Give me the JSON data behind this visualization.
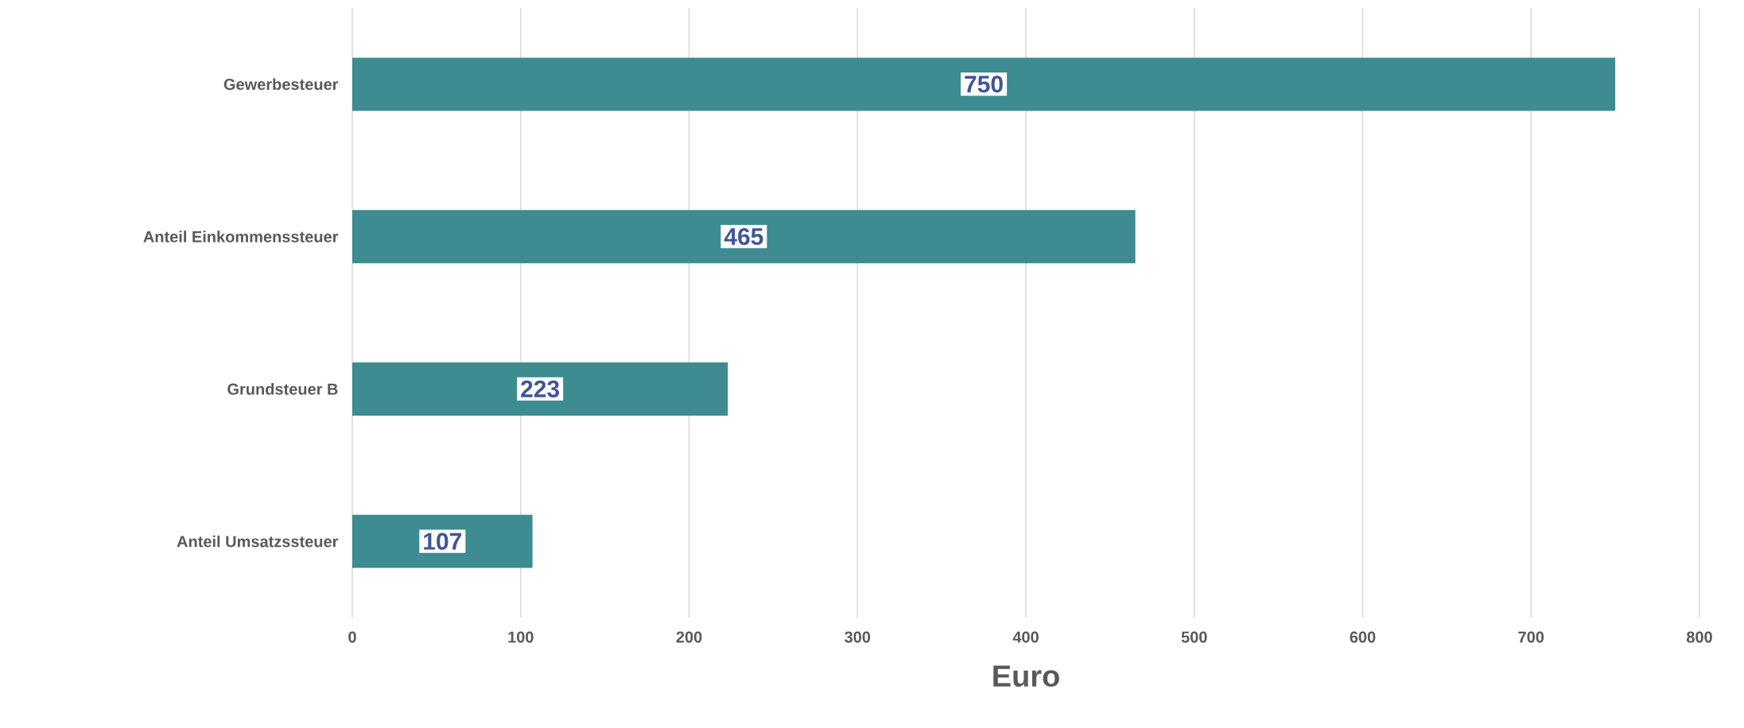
{
  "chart_data": {
    "type": "bar",
    "orientation": "horizontal",
    "xlabel": "Euro",
    "categories": [
      "Gewerbesteuer",
      "Anteil Einkommenssteuer",
      "Grundsteuer B",
      "Anteil Umsatzssteuer"
    ],
    "values": [
      750,
      465,
      223,
      107
    ],
    "color": "#3d8c91",
    "xlim": [
      0,
      800
    ],
    "xticks": [
      0,
      100,
      200,
      300,
      400,
      500,
      600,
      700,
      800
    ],
    "grid": "x",
    "data_labels": true
  }
}
